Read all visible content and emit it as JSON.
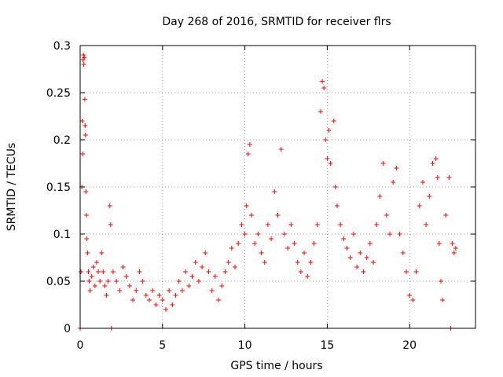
{
  "chart_data": {
    "type": "scatter",
    "title": "Day 268 of 2016, SRMTID for receiver flrs",
    "xlabel": "GPS time / hours",
    "ylabel": "SRMTID / TECUs",
    "xlim": [
      0,
      24
    ],
    "ylim": [
      0,
      0.3
    ],
    "x_ticks": [
      0,
      5,
      10,
      15,
      20
    ],
    "y_ticks": [
      0,
      0.05,
      0.1,
      0.15,
      0.2,
      0.25,
      0.3
    ],
    "y_tick_labels": [
      "0",
      "0.05",
      "0.1",
      "0.15",
      "0.2",
      "0.25",
      "0.3"
    ],
    "grid": true,
    "legend": "none",
    "marker": "plus",
    "series": [
      {
        "name": "SRMTID",
        "color": "#ff0000",
        "points": [
          [
            0.0,
            0.0
          ],
          [
            0.05,
            0.06
          ],
          [
            0.1,
            0.15
          ],
          [
            0.12,
            0.22
          ],
          [
            0.15,
            0.185
          ],
          [
            0.18,
            0.285
          ],
          [
            0.2,
            0.29
          ],
          [
            0.22,
            0.28
          ],
          [
            0.25,
            0.287
          ],
          [
            0.28,
            0.243
          ],
          [
            0.3,
            0.215
          ],
          [
            0.32,
            0.205
          ],
          [
            0.35,
            0.145
          ],
          [
            0.38,
            0.12
          ],
          [
            0.4,
            0.095
          ],
          [
            0.45,
            0.08
          ],
          [
            0.5,
            0.06
          ],
          [
            0.55,
            0.05
          ],
          [
            0.6,
            0.04
          ],
          [
            0.7,
            0.055
          ],
          [
            0.8,
            0.065
          ],
          [
            0.9,
            0.045
          ],
          [
            1.0,
            0.07
          ],
          [
            1.1,
            0.06
          ],
          [
            1.2,
            0.05
          ],
          [
            1.3,
            0.08
          ],
          [
            1.4,
            0.06
          ],
          [
            1.5,
            0.045
          ],
          [
            1.6,
            0.035
          ],
          [
            1.7,
            0.05
          ],
          [
            1.8,
            0.13
          ],
          [
            1.85,
            0.11
          ],
          [
            1.9,
            0.0
          ],
          [
            2.0,
            0.06
          ],
          [
            2.2,
            0.05
          ],
          [
            2.4,
            0.04
          ],
          [
            2.6,
            0.065
          ],
          [
            2.8,
            0.055
          ],
          [
            3.0,
            0.045
          ],
          [
            3.2,
            0.03
          ],
          [
            3.4,
            0.04
          ],
          [
            3.6,
            0.06
          ],
          [
            3.8,
            0.05
          ],
          [
            4.0,
            0.035
          ],
          [
            4.2,
            0.03
          ],
          [
            4.4,
            0.04
          ],
          [
            4.6,
            0.025
          ],
          [
            4.8,
            0.035
          ],
          [
            5.0,
            0.03
          ],
          [
            5.2,
            0.02
          ],
          [
            5.4,
            0.04
          ],
          [
            5.6,
            0.025
          ],
          [
            5.8,
            0.035
          ],
          [
            6.0,
            0.05
          ],
          [
            6.2,
            0.04
          ],
          [
            6.4,
            0.06
          ],
          [
            6.6,
            0.045
          ],
          [
            6.8,
            0.055
          ],
          [
            7.0,
            0.07
          ],
          [
            7.2,
            0.05
          ],
          [
            7.4,
            0.065
          ],
          [
            7.6,
            0.08
          ],
          [
            7.8,
            0.06
          ],
          [
            8.0,
            0.04
          ],
          [
            8.2,
            0.055
          ],
          [
            8.4,
            0.03
          ],
          [
            8.6,
            0.045
          ],
          [
            8.8,
            0.06
          ],
          [
            9.0,
            0.07
          ],
          [
            9.2,
            0.085
          ],
          [
            9.4,
            0.065
          ],
          [
            9.6,
            0.09
          ],
          [
            9.8,
            0.11
          ],
          [
            10.0,
            0.1
          ],
          [
            10.1,
            0.13
          ],
          [
            10.2,
            0.185
          ],
          [
            10.3,
            0.195
          ],
          [
            10.4,
            0.12
          ],
          [
            10.6,
            0.09
          ],
          [
            10.8,
            0.1
          ],
          [
            11.0,
            0.08
          ],
          [
            11.2,
            0.07
          ],
          [
            11.4,
            0.11
          ],
          [
            11.6,
            0.095
          ],
          [
            11.8,
            0.145
          ],
          [
            12.0,
            0.12
          ],
          [
            12.2,
            0.19
          ],
          [
            12.4,
            0.1
          ],
          [
            12.6,
            0.085
          ],
          [
            12.8,
            0.11
          ],
          [
            13.0,
            0.09
          ],
          [
            13.2,
            0.07
          ],
          [
            13.4,
            0.06
          ],
          [
            13.6,
            0.08
          ],
          [
            13.8,
            0.055
          ],
          [
            14.0,
            0.07
          ],
          [
            14.2,
            0.09
          ],
          [
            14.4,
            0.11
          ],
          [
            14.6,
            0.23
          ],
          [
            14.7,
            0.262
          ],
          [
            14.8,
            0.255
          ],
          [
            14.9,
            0.2
          ],
          [
            15.0,
            0.18
          ],
          [
            15.1,
            0.21
          ],
          [
            15.2,
            0.175
          ],
          [
            15.4,
            0.22
          ],
          [
            15.5,
            0.15
          ],
          [
            15.6,
            0.13
          ],
          [
            15.8,
            0.11
          ],
          [
            16.0,
            0.095
          ],
          [
            16.2,
            0.085
          ],
          [
            16.4,
            0.075
          ],
          [
            16.6,
            0.1
          ],
          [
            16.8,
            0.065
          ],
          [
            17.0,
            0.08
          ],
          [
            17.2,
            0.06
          ],
          [
            17.4,
            0.075
          ],
          [
            17.6,
            0.09
          ],
          [
            17.8,
            0.07
          ],
          [
            18.0,
            0.11
          ],
          [
            18.2,
            0.14
          ],
          [
            18.4,
            0.175
          ],
          [
            18.6,
            0.12
          ],
          [
            18.8,
            0.1
          ],
          [
            19.0,
            0.155
          ],
          [
            19.2,
            0.17
          ],
          [
            19.4,
            0.1
          ],
          [
            19.6,
            0.08
          ],
          [
            19.8,
            0.06
          ],
          [
            20.0,
            0.035
          ],
          [
            20.2,
            0.03
          ],
          [
            20.4,
            0.06
          ],
          [
            20.6,
            0.13
          ],
          [
            20.8,
            0.155
          ],
          [
            21.0,
            0.11
          ],
          [
            21.2,
            0.14
          ],
          [
            21.4,
            0.175
          ],
          [
            21.6,
            0.18
          ],
          [
            21.7,
            0.16
          ],
          [
            21.8,
            0.09
          ],
          [
            21.9,
            0.05
          ],
          [
            22.0,
            0.03
          ],
          [
            22.2,
            0.12
          ],
          [
            22.4,
            0.16
          ],
          [
            22.5,
            0.0
          ],
          [
            22.6,
            0.09
          ],
          [
            22.7,
            0.08
          ],
          [
            22.8,
            0.085
          ]
        ]
      }
    ]
  }
}
